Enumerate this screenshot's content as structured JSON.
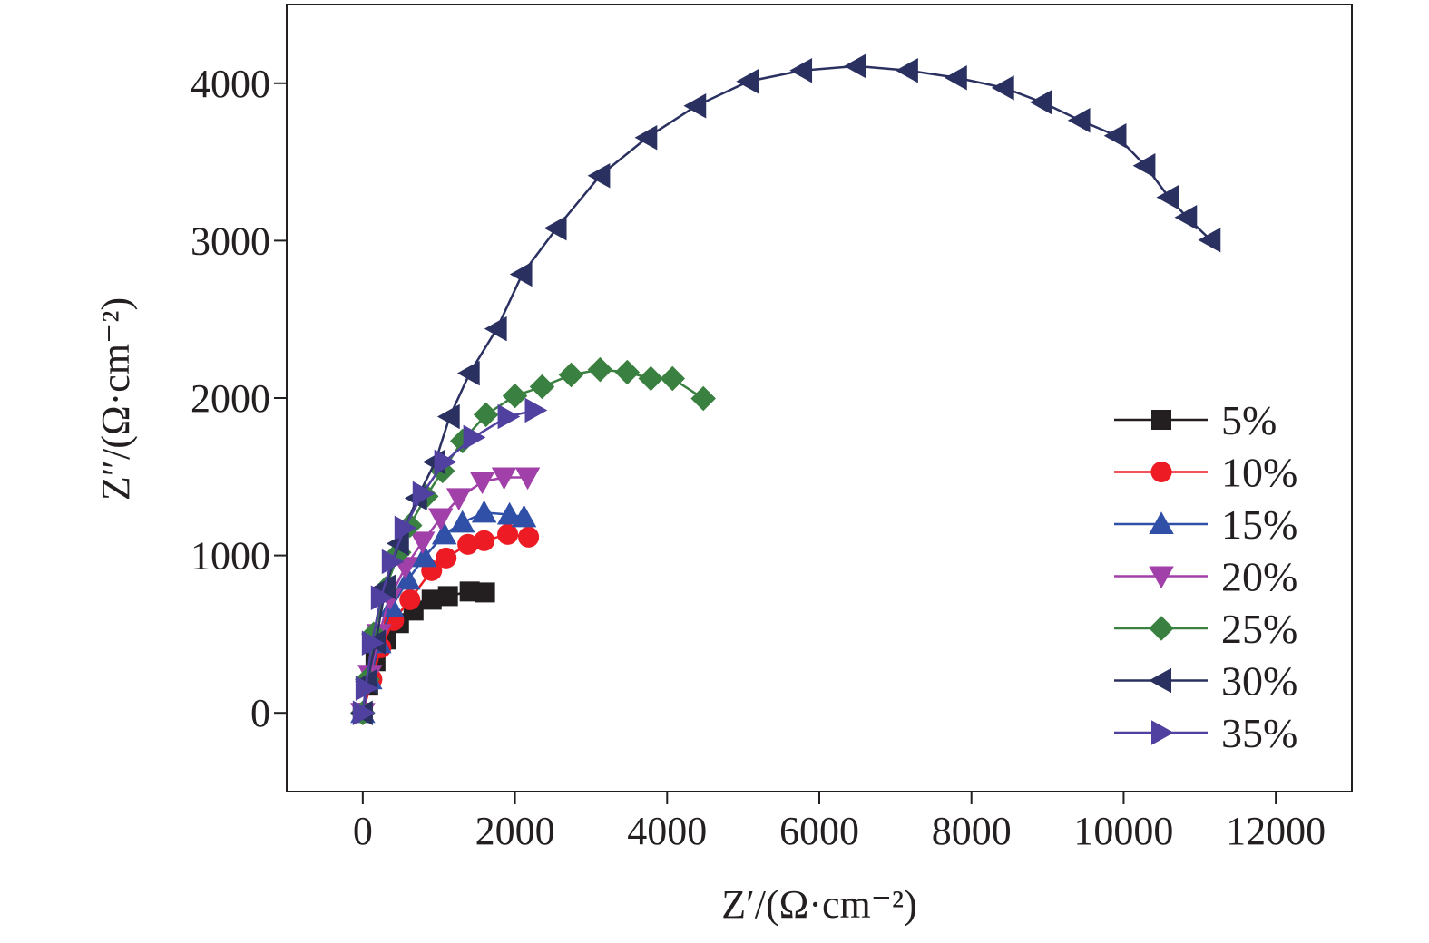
{
  "chart_data": {
    "type": "scatter",
    "title": "",
    "xlabel": "Z′/(Ω·cm⁻²)",
    "ylabel": "Z″/(Ω·cm⁻²)",
    "xlim": [
      -1000,
      13000
    ],
    "ylim": [
      -500,
      4500
    ],
    "xticks": [
      0,
      2000,
      4000,
      6000,
      8000,
      10000,
      12000
    ],
    "yticks": [
      0,
      1000,
      2000,
      3000,
      4000
    ],
    "grid": false,
    "legend_position": "center-right",
    "series": [
      {
        "name": "5%",
        "color": "#231f20",
        "marker": "square",
        "x": [
          0,
          71,
          167,
          310,
          476,
          667,
          905,
          1119,
          1405,
          1607
        ],
        "y": [
          0,
          173,
          328,
          466,
          570,
          650,
          719,
          742,
          771,
          765
        ]
      },
      {
        "name": "10%",
        "color": "#ed1c24",
        "marker": "circle",
        "x": [
          0,
          119,
          238,
          405,
          619,
          905,
          1095,
          1381,
          1595,
          1905,
          2179
        ],
        "y": [
          0,
          213,
          414,
          587,
          719,
          904,
          984,
          1071,
          1094,
          1134,
          1117
        ]
      },
      {
        "name": "15%",
        "color": "#3050a8",
        "marker": "triangle-up",
        "x": [
          0,
          95,
          214,
          381,
          595,
          810,
          1071,
          1310,
          1595,
          1929,
          2119
        ],
        "y": [
          0,
          213,
          443,
          673,
          846,
          990,
          1134,
          1209,
          1272,
          1260,
          1243
        ]
      },
      {
        "name": "20%",
        "color": "#a040a8",
        "marker": "triangle-down",
        "x": [
          0,
          95,
          214,
          357,
          560,
          786,
          1024,
          1262,
          1571,
          1857,
          2167
        ],
        "y": [
          0,
          242,
          501,
          731,
          927,
          1088,
          1237,
          1364,
          1468,
          1496,
          1496
        ]
      },
      {
        "name": "25%",
        "color": "#3a8040",
        "marker": "diamond",
        "x": [
          0,
          60,
          143,
          298,
          476,
          619,
          833,
          1048,
          1310,
          1619,
          2000,
          2357,
          2738,
          3119,
          3476,
          3786,
          4071,
          4476
        ],
        "y": [
          0,
          213,
          501,
          788,
          1019,
          1191,
          1376,
          1537,
          1727,
          1894,
          2014,
          2072,
          2147,
          2181,
          2164,
          2124,
          2124,
          1997
        ]
      },
      {
        "name": "30%",
        "color": "#2a3060",
        "marker": "triangle-left",
        "x": [
          0,
          60,
          170,
          300,
          476,
          714,
          952,
          1143,
          1405,
          1762,
          2095,
          2548,
          3119,
          3738,
          4381,
          5071,
          5774,
          6488,
          7167,
          7810,
          8429,
          8929,
          9429,
          9905,
          10286,
          10595,
          10833,
          11143
        ],
        "y": [
          0,
          200,
          450,
          800,
          1076,
          1364,
          1594,
          1882,
          2158,
          2440,
          2786,
          3079,
          3413,
          3655,
          3856,
          4012,
          4081,
          4109,
          4081,
          4035,
          3971,
          3879,
          3764,
          3666,
          3476,
          3275,
          3148,
          3004
        ]
      },
      {
        "name": "35%",
        "color": "#5040a0",
        "marker": "triangle-right",
        "x": [
          0,
          36,
          119,
          238,
          381,
          548,
          786,
          1071,
          1452,
          1905,
          2262
        ],
        "y": [
          0,
          155,
          443,
          731,
          961,
          1174,
          1393,
          1594,
          1750,
          1882,
          1922
        ]
      }
    ]
  }
}
